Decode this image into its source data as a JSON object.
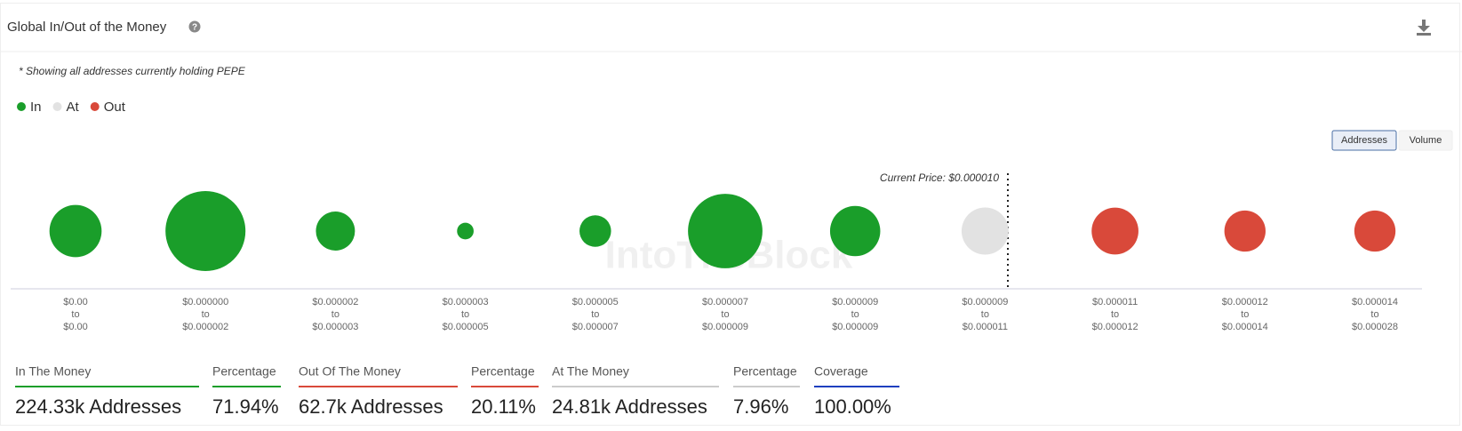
{
  "header": {
    "title": "Global In/Out of the Money"
  },
  "note": "* Showing all addresses currently holding PEPE",
  "toggle": [
    "Addresses",
    "Volume"
  ],
  "chart_data": {
    "type": "bubble",
    "categories": [
      [
        "$0.00",
        "to",
        "$0.00"
      ],
      [
        "$0.000000",
        "to",
        "$0.000002"
      ],
      [
        "$0.000002",
        "to",
        "$0.000003"
      ],
      [
        "$0.000003",
        "to",
        "$0.000005"
      ],
      [
        "$0.000005",
        "to",
        "$0.000007"
      ],
      [
        "$0.000007",
        "to",
        "$0.000009"
      ],
      [
        "$0.000009",
        "to",
        "$0.000009"
      ],
      [
        "$0.000009",
        "to",
        "$0.000011"
      ],
      [
        "$0.000011",
        "to",
        "$0.000012"
      ],
      [
        "$0.000012",
        "to",
        "$0.000014"
      ],
      [
        "$0.000014",
        "to",
        "$0.000028"
      ]
    ],
    "series": [
      {
        "name": "In",
        "color": "#1a9e2a",
        "values": [
          30500,
          71800,
          17100,
          3100,
          11200,
          62200,
          28300,
          null,
          null,
          null,
          null
        ]
      },
      {
        "name": "At",
        "color": "#e2e2e2",
        "values": [
          null,
          null,
          null,
          null,
          null,
          null,
          null,
          24810,
          null,
          null,
          null
        ]
      },
      {
        "name": "Out",
        "color": "#d9493a",
        "values": [
          null,
          null,
          null,
          null,
          null,
          null,
          null,
          null,
          24600,
          19050,
          19050
        ]
      }
    ],
    "annotation": "Current Price: $0.000010",
    "watermark": "IntoTheBlock"
  },
  "stats": [
    {
      "label": "In The Money",
      "value": "224.33k Addresses",
      "color": "#1a9e2a"
    },
    {
      "label": "Percentage",
      "value": "71.94%",
      "color": "#1a9e2a"
    },
    {
      "label": "Out Of The Money",
      "value": "62.7k Addresses",
      "color": "#d9493a"
    },
    {
      "label": "Percentage",
      "value": "20.11%",
      "color": "#d9493a"
    },
    {
      "label": "At The Money",
      "value": "24.81k Addresses",
      "color": "#cccccc"
    },
    {
      "label": "Percentage",
      "value": "7.96%",
      "color": "#cccccc"
    },
    {
      "label": "Coverage",
      "value": "100.00%",
      "color": "#1f3fbf"
    }
  ]
}
